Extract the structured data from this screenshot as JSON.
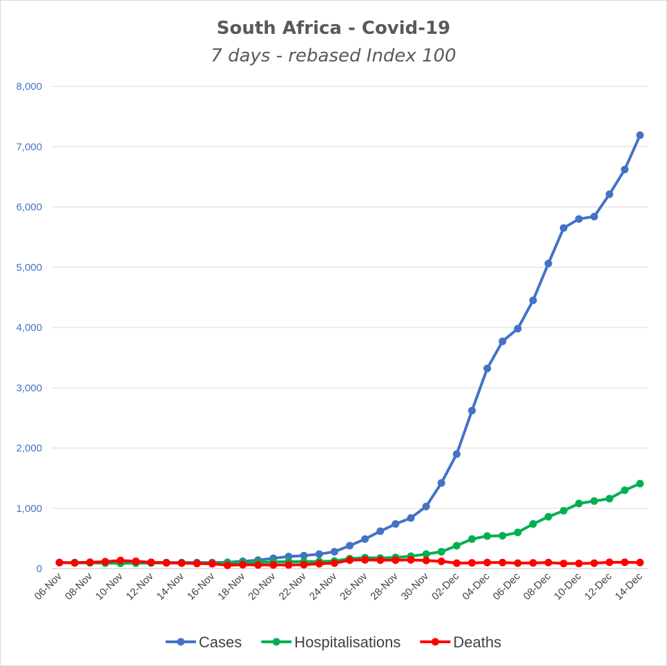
{
  "chart_data": {
    "type": "line",
    "title": "South Africa - Covid-19",
    "subtitle": "7 days - rebased Index 100",
    "xlabel": "",
    "ylabel": "",
    "ylim": [
      0,
      8000
    ],
    "ytick_labels": [
      "0",
      "1,000",
      "2,000",
      "3,000",
      "4,000",
      "5,000",
      "6,000",
      "7,000",
      "8,000"
    ],
    "yticks": [
      0,
      1000,
      2000,
      3000,
      4000,
      5000,
      6000,
      7000,
      8000
    ],
    "grid": true,
    "legend_position": "bottom",
    "categories": [
      "06-Nov",
      "07-Nov",
      "08-Nov",
      "09-Nov",
      "10-Nov",
      "11-Nov",
      "12-Nov",
      "13-Nov",
      "14-Nov",
      "15-Nov",
      "16-Nov",
      "17-Nov",
      "18-Nov",
      "19-Nov",
      "20-Nov",
      "21-Nov",
      "22-Nov",
      "23-Nov",
      "24-Nov",
      "25-Nov",
      "26-Nov",
      "27-Nov",
      "28-Nov",
      "29-Nov",
      "30-Nov",
      "01-Dec",
      "02-Dec",
      "03-Dec",
      "04-Dec",
      "05-Dec",
      "06-Dec",
      "07-Dec",
      "08-Dec",
      "09-Dec",
      "10-Dec",
      "11-Dec",
      "12-Dec",
      "13-Dec",
      "14-Dec"
    ],
    "x_tick_labels": [
      "06-Nov",
      "08-Nov",
      "10-Nov",
      "12-Nov",
      "14-Nov",
      "16-Nov",
      "18-Nov",
      "20-Nov",
      "22-Nov",
      "24-Nov",
      "26-Nov",
      "28-Nov",
      "30-Nov",
      "02-Dec",
      "04-Dec",
      "06-Dec",
      "08-Dec",
      "10-Dec",
      "12-Dec",
      "14-Dec"
    ],
    "series": [
      {
        "name": "Cases",
        "color": "#4472c4",
        "values": [
          100,
          100,
          105,
          110,
          112,
          108,
          105,
          100,
          100,
          100,
          100,
          105,
          120,
          140,
          170,
          200,
          215,
          240,
          280,
          380,
          490,
          620,
          740,
          840,
          1030,
          1420,
          1900,
          2620,
          3320,
          3770,
          3980,
          4450,
          5060,
          5650,
          5800,
          5840,
          6210,
          6620,
          7190
        ]
      },
      {
        "name": "Hospitalisations",
        "color": "#00b050",
        "values": [
          100,
          95,
          95,
          90,
          88,
          90,
          92,
          95,
          95,
          92,
          90,
          95,
          100,
          105,
          110,
          115,
          115,
          118,
          125,
          165,
          180,
          175,
          185,
          205,
          240,
          280,
          380,
          490,
          540,
          545,
          600,
          740,
          860,
          960,
          1080,
          1120,
          1160,
          1300,
          1410
        ]
      },
      {
        "name": "Deaths",
        "color": "#ff0000",
        "values": [
          100,
          95,
          105,
          115,
          135,
          120,
          105,
          95,
          90,
          85,
          80,
          55,
          65,
          60,
          60,
          60,
          65,
          80,
          90,
          140,
          145,
          140,
          140,
          145,
          135,
          120,
          90,
          95,
          100,
          100,
          90,
          95,
          100,
          85,
          85,
          90,
          105,
          105,
          100
        ]
      }
    ]
  }
}
